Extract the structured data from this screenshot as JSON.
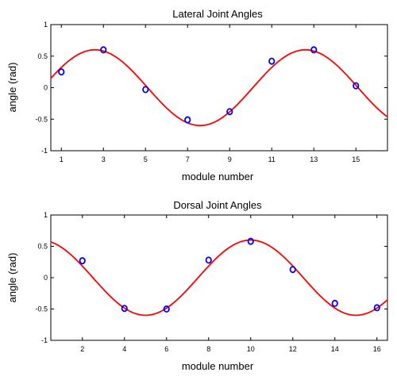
{
  "chart_data": [
    {
      "type": "scatter",
      "title": "Lateral Joint Angles",
      "xlabel": "module number",
      "ylabel": "angle (rad)",
      "xlim": [
        0.5,
        16.5
      ],
      "ylim": [
        -1,
        1
      ],
      "xticks": [
        "1",
        "3",
        "5",
        "7",
        "9",
        "11",
        "13",
        "15"
      ],
      "yticks": [
        "1",
        "0.5",
        "0",
        "-0.5",
        "-1"
      ],
      "grid": false,
      "colors": {
        "curve": "#ff0000",
        "points": "#0000ff"
      },
      "curve": {
        "amplitude": 0.6,
        "period": 10,
        "peak_x": 2.6
      },
      "series": [
        {
          "x": [
            1,
            3,
            5,
            7,
            9,
            11,
            13,
            15
          ],
          "y": [
            0.25,
            0.6,
            -0.03,
            -0.51,
            -0.38,
            0.42,
            0.6,
            0.03
          ]
        }
      ]
    },
    {
      "type": "scatter",
      "title": "Dorsal Joint Angles",
      "xlabel": "module number",
      "ylabel": "angle (rad)",
      "xlim": [
        0.5,
        16.5
      ],
      "ylim": [
        -1,
        1
      ],
      "xticks": [
        "2",
        "4",
        "6",
        "8",
        "10",
        "12",
        "14",
        "16"
      ],
      "yticks": [
        "1",
        "0.5",
        "0",
        "-0.5",
        "-1"
      ],
      "grid": false,
      "colors": {
        "curve": "#ff0000",
        "points": "#0000ff"
      },
      "curve": {
        "amplitude": 0.6,
        "period": 10,
        "peak_x": 10
      },
      "series": [
        {
          "x": [
            2,
            4,
            6,
            8,
            10,
            12,
            14,
            16
          ],
          "y": [
            0.27,
            -0.49,
            -0.5,
            0.28,
            0.58,
            0.13,
            -0.41,
            -0.48
          ]
        }
      ]
    }
  ]
}
